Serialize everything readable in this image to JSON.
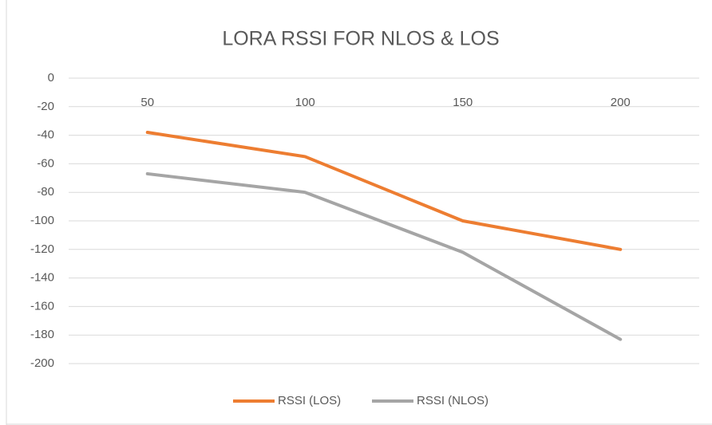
{
  "chart_data": {
    "type": "line",
    "title": "LORA RSSI FOR NLOS & LOS",
    "categories": [
      "50",
      "100",
      "150",
      "200"
    ],
    "series": [
      {
        "name": "RSSI (LOS)",
        "color": "#ed7d31",
        "values": [
          -38,
          -55,
          -100,
          -120
        ]
      },
      {
        "name": "RSSI (NLOS)",
        "color": "#a5a5a5",
        "values": [
          -67,
          -80,
          -122,
          -183
        ]
      }
    ],
    "ylim": [
      -200,
      0
    ],
    "yticks": [
      0,
      -20,
      -40,
      -60,
      -80,
      -100,
      -120,
      -140,
      -160,
      -180,
      -200
    ],
    "grid": true,
    "legend": "bottom"
  }
}
